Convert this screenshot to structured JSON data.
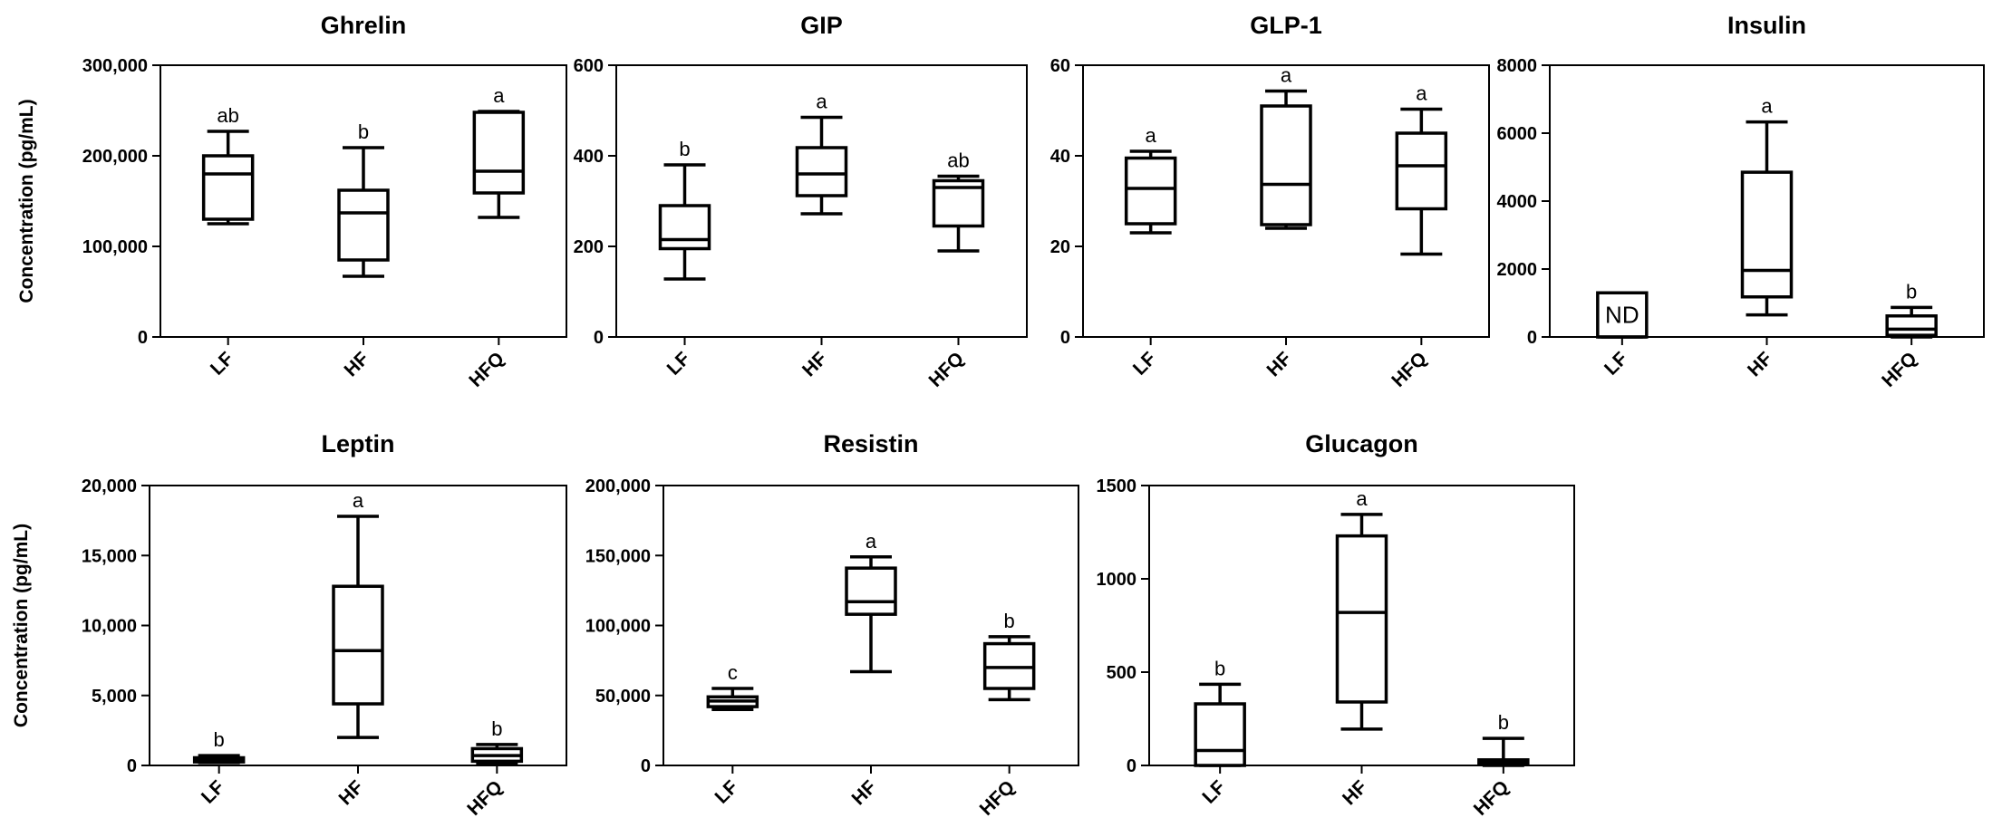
{
  "chart_data": [
    {
      "type": "box",
      "title": "Ghrelin",
      "ylabel": "Concentration (pg/mL)",
      "ylim": [
        0,
        300000
      ],
      "yticks": [
        0,
        100000,
        200000,
        300000
      ],
      "ytick_labels": [
        "0",
        "100,000",
        "200,000",
        "300,000"
      ],
      "categories": [
        "LF",
        "HF",
        "HFQ"
      ],
      "boxes": [
        {
          "min": 125000,
          "q1": 130000,
          "median": 180000,
          "q3": 200000,
          "max": 227000,
          "letter": "ab"
        },
        {
          "min": 67000,
          "q1": 85000,
          "median": 137000,
          "q3": 162000,
          "max": 209000,
          "letter": "b"
        },
        {
          "min": 132000,
          "q1": 159000,
          "median": 183000,
          "q3": 248000,
          "max": 249000,
          "letter": "a"
        }
      ]
    },
    {
      "type": "box",
      "title": "GIP",
      "ylabel": "",
      "ylim": [
        0,
        600
      ],
      "yticks": [
        0,
        200,
        400,
        600
      ],
      "ytick_labels": [
        "0",
        "200",
        "400",
        "600"
      ],
      "categories": [
        "LF",
        "HF",
        "HFQ"
      ],
      "boxes": [
        {
          "min": 128,
          "q1": 195,
          "median": 215,
          "q3": 290,
          "max": 380,
          "letter": "b"
        },
        {
          "min": 272,
          "q1": 312,
          "median": 360,
          "q3": 418,
          "max": 485,
          "letter": "a"
        },
        {
          "min": 190,
          "q1": 245,
          "median": 330,
          "q3": 345,
          "max": 355,
          "letter": "ab"
        }
      ]
    },
    {
      "type": "box",
      "title": "GLP-1",
      "ylabel": "",
      "ylim": [
        0,
        60
      ],
      "yticks": [
        0,
        20,
        40,
        60
      ],
      "ytick_labels": [
        "0",
        "20",
        "40",
        "60"
      ],
      "categories": [
        "LF",
        "HF",
        "HFQ"
      ],
      "boxes": [
        {
          "min": 23,
          "q1": 25,
          "median": 32.8,
          "q3": 39.5,
          "max": 41,
          "letter": "a"
        },
        {
          "min": 24,
          "q1": 24.8,
          "median": 33.7,
          "q3": 51,
          "max": 54.3,
          "letter": "a"
        },
        {
          "min": 18.3,
          "q1": 28.3,
          "median": 37.8,
          "q3": 45,
          "max": 50.3,
          "letter": "a"
        }
      ]
    },
    {
      "type": "box",
      "title": "Insulin",
      "ylabel": "",
      "ylim": [
        0,
        8000
      ],
      "yticks": [
        0,
        2000,
        4000,
        6000,
        8000
      ],
      "ytick_labels": [
        "0",
        "2000",
        "4000",
        "6000",
        "8000"
      ],
      "categories": [
        "LF",
        "HF",
        "HFQ"
      ],
      "boxes": [
        {
          "min": 0,
          "q1": 0,
          "median": 0,
          "q3": 1300,
          "max": 1300,
          "letter": "",
          "nd": "ND"
        },
        {
          "min": 650,
          "q1": 1180,
          "median": 1960,
          "q3": 4850,
          "max": 6330,
          "letter": "a"
        },
        {
          "min": 0,
          "q1": 50,
          "median": 230,
          "q3": 620,
          "max": 870,
          "letter": "b"
        }
      ]
    },
    {
      "type": "box",
      "title": "Leptin",
      "ylabel": "Concentration (pg/mL)",
      "ylim": [
        0,
        20000
      ],
      "yticks": [
        0,
        5000,
        10000,
        15000,
        20000
      ],
      "ytick_labels": [
        "0",
        "5,000",
        "10,000",
        "15,000",
        "20,000"
      ],
      "categories": [
        "LF",
        "HF",
        "HFQ"
      ],
      "boxes": [
        {
          "min": 200,
          "q1": 250,
          "median": 450,
          "q3": 550,
          "max": 700,
          "letter": "b"
        },
        {
          "min": 2000,
          "q1": 4400,
          "median": 8200,
          "q3": 12800,
          "max": 17800,
          "letter": "a"
        },
        {
          "min": 100,
          "q1": 300,
          "median": 700,
          "q3": 1200,
          "max": 1500,
          "letter": "b"
        }
      ]
    },
    {
      "type": "box",
      "title": "Resistin",
      "ylabel": "",
      "ylim": [
        0,
        200000
      ],
      "yticks": [
        0,
        50000,
        100000,
        150000,
        200000
      ],
      "ytick_labels": [
        "0",
        "50,000",
        "100,000",
        "150,000",
        "200,000"
      ],
      "categories": [
        "LF",
        "HF",
        "HFQ"
      ],
      "boxes": [
        {
          "min": 40000,
          "q1": 42000,
          "median": 46000,
          "q3": 49000,
          "max": 55000,
          "letter": "c"
        },
        {
          "min": 67000,
          "q1": 108000,
          "median": 117000,
          "q3": 141000,
          "max": 149000,
          "letter": "a"
        },
        {
          "min": 47000,
          "q1": 55000,
          "median": 70000,
          "q3": 87000,
          "max": 92000,
          "letter": "b"
        }
      ]
    },
    {
      "type": "box",
      "title": "Glucagon",
      "ylabel": "",
      "ylim": [
        0,
        1500
      ],
      "yticks": [
        0,
        500,
        1000,
        1500
      ],
      "ytick_labels": [
        "0",
        "500",
        "1000",
        "1500"
      ],
      "categories": [
        "LF",
        "HF",
        "HFQ"
      ],
      "boxes": [
        {
          "min": 0,
          "q1": 0,
          "median": 80,
          "q3": 330,
          "max": 435,
          "letter": "b"
        },
        {
          "min": 195,
          "q1": 340,
          "median": 820,
          "q3": 1230,
          "max": 1345,
          "letter": "a"
        },
        {
          "min": 0,
          "q1": 10,
          "median": 20,
          "q3": 30,
          "max": 145,
          "letter": "b"
        }
      ]
    }
  ]
}
